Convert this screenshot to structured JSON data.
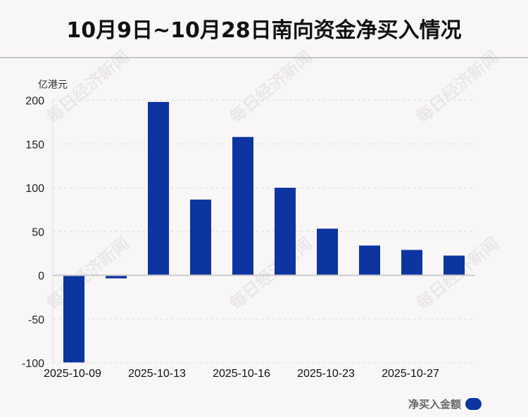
{
  "title": "10月9日~10月28日南向资金净买入情况",
  "watermark": "每日经济新闻",
  "colors": {
    "bar": "#0d35a0",
    "grid": "#dddddd",
    "zero_line": "#cccccc"
  },
  "chart_data": {
    "type": "bar",
    "title": "10月9日~10月28日南向资金净买入情况",
    "ylabel": "亿港元",
    "xlabel": "",
    "ylim": [
      -100,
      200
    ],
    "yticks": [
      200,
      150,
      100,
      50,
      0,
      -50,
      -100
    ],
    "x_tick_labels": [
      "2025-10-09",
      "",
      "2025-10-13",
      "",
      "2025-10-16",
      "",
      "2025-10-23",
      "",
      "2025-10-27",
      ""
    ],
    "grid": true,
    "legend_position": "bottom-right",
    "series": [
      {
        "name": "净买入金额",
        "values": [
          -99.5,
          -3.5,
          198,
          86.5,
          158,
          100,
          53.3,
          34,
          29,
          22.5
        ]
      }
    ]
  }
}
